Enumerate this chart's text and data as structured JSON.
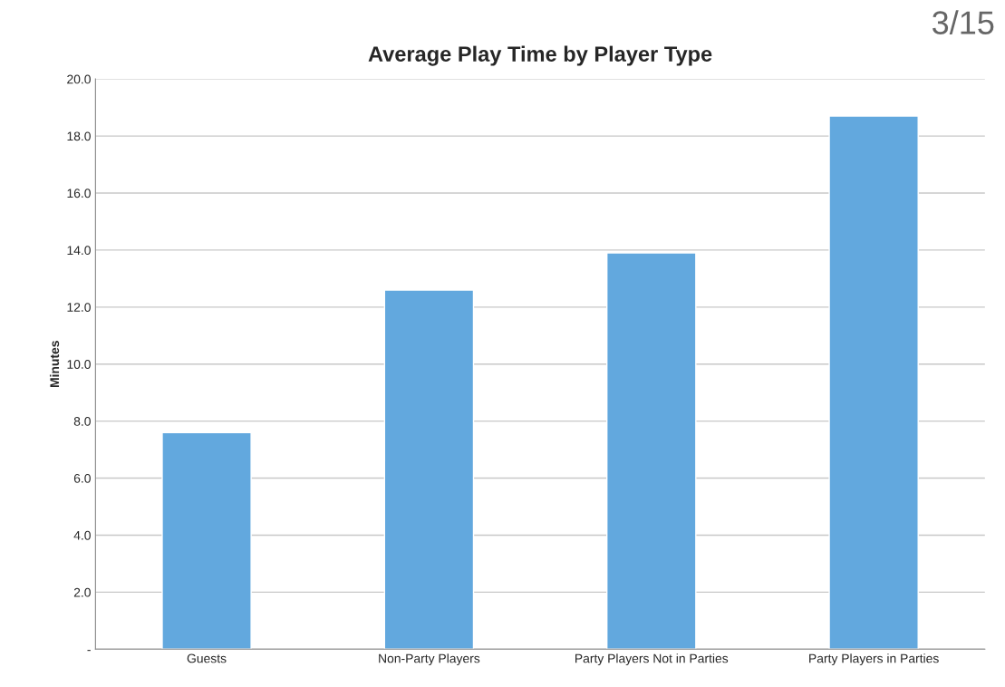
{
  "chart_data": {
    "type": "bar",
    "title": "Average Play Time by Player Type",
    "ylabel": "Minutes",
    "categories": [
      "Guests",
      "Non-Party Players",
      "Party Players Not in Parties",
      "Party Players in Parties"
    ],
    "values": [
      7.6,
      12.6,
      13.9,
      18.7
    ],
    "color": "#62a8de",
    "ylim": [
      0,
      20
    ],
    "yticks": [
      {
        "value": 0,
        "label": "-"
      },
      {
        "value": 2,
        "label": "2.0"
      },
      {
        "value": 4,
        "label": "4.0"
      },
      {
        "value": 6,
        "label": "6.0"
      },
      {
        "value": 8,
        "label": "8.0"
      },
      {
        "value": 10,
        "label": "10.0"
      },
      {
        "value": 12,
        "label": "12.0"
      },
      {
        "value": 14,
        "label": "14.0"
      },
      {
        "value": 16,
        "label": "16.0"
      },
      {
        "value": 18,
        "label": "18.0"
      },
      {
        "value": 20,
        "label": "20.0"
      }
    ],
    "grid": "y",
    "legend": false,
    "annotations": [
      "3/15"
    ]
  }
}
